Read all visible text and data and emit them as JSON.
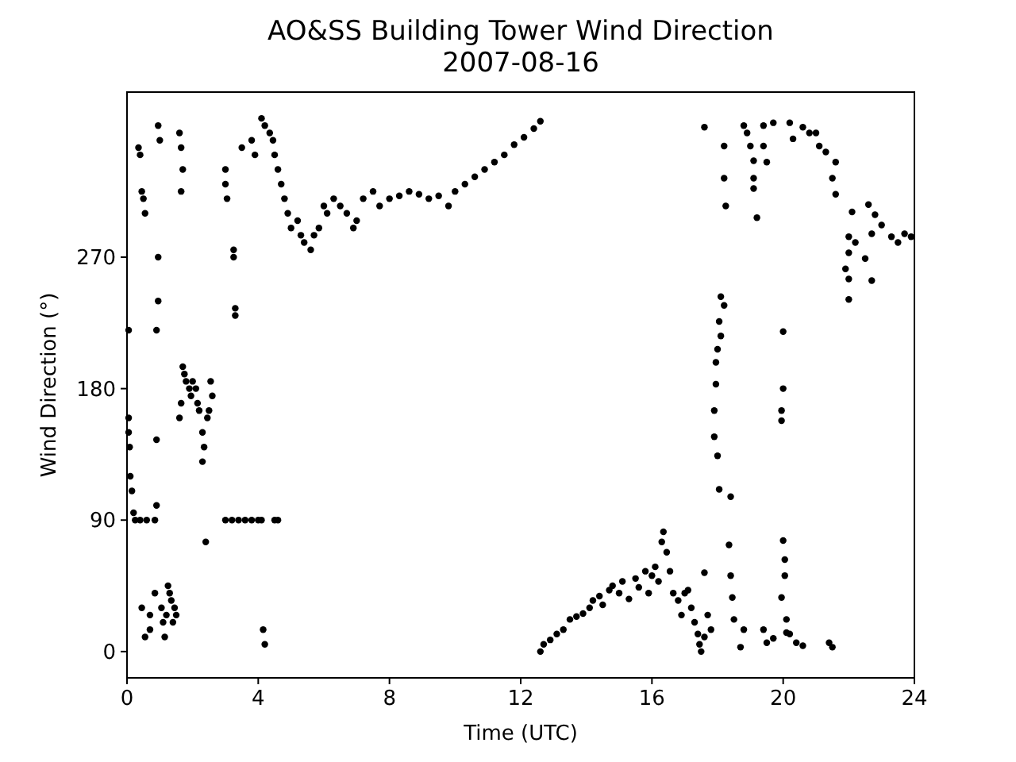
{
  "chart_data": {
    "type": "scatter",
    "title": "AO&SS Building Tower Wind Direction",
    "subtitle": "2007-08-16",
    "xlabel": "Time (UTC)",
    "ylabel": "Wind Direction (°)",
    "xlim": [
      0,
      24
    ],
    "xticks": [
      0,
      4,
      8,
      12,
      16,
      20,
      24
    ],
    "ylim": [
      -18,
      383
    ],
    "yticks": [
      0,
      90,
      180,
      270
    ],
    "marker": "circle",
    "series": [
      {
        "color": "#000000",
        "x": [
          0.05,
          0.05,
          0.05,
          0.08,
          0.1,
          0.15,
          0.2,
          0.25,
          0.35,
          0.4,
          0.45,
          0.5,
          0.55,
          0.4,
          0.6,
          0.45,
          0.55,
          0.7,
          0.7,
          0.85,
          0.9,
          0.85,
          0.95,
          1.0,
          0.95,
          0.95,
          0.9,
          0.9,
          1.05,
          1.1,
          1.15,
          1.2,
          1.3,
          1.35,
          1.4,
          1.45,
          1.5,
          1.25,
          1.6,
          1.65,
          1.7,
          1.65,
          1.7,
          1.75,
          1.8,
          1.9,
          1.95,
          2.0,
          1.6,
          1.65,
          2.1,
          2.15,
          2.2,
          2.3,
          2.35,
          2.3,
          2.4,
          2.55,
          2.6,
          2.5,
          2.45,
          3.0,
          3.0,
          3.05,
          3.25,
          3.25,
          3.3,
          3.3,
          3.0,
          3.2,
          3.4,
          3.6,
          3.8,
          4.0,
          4.1,
          4.5,
          4.6,
          3.5,
          3.8,
          3.9,
          4.1,
          4.2,
          4.35,
          4.45,
          4.15,
          4.2,
          4.5,
          4.6,
          4.7,
          4.8,
          4.9,
          5.0,
          5.2,
          5.3,
          5.4,
          5.6,
          5.7,
          5.85,
          6.0,
          6.1,
          6.3,
          6.5,
          6.7,
          6.9,
          7.0,
          7.2,
          7.5,
          7.7,
          8.0,
          8.3,
          8.6,
          8.9,
          9.2,
          9.5,
          9.8,
          10.0,
          10.3,
          10.6,
          10.9,
          11.2,
          11.5,
          11.8,
          12.1,
          12.4,
          12.6,
          12.6,
          12.7,
          12.9,
          13.1,
          13.3,
          13.5,
          13.7,
          13.9,
          14.1,
          14.2,
          14.4,
          14.5,
          14.7,
          14.8,
          15.0,
          15.1,
          15.3,
          15.5,
          15.6,
          15.8,
          15.9,
          16.0,
          16.1,
          16.2,
          16.3,
          16.35,
          16.45,
          16.55,
          16.65,
          16.8,
          16.9,
          17.0,
          17.1,
          17.2,
          17.3,
          17.4,
          17.45,
          17.5,
          17.6,
          17.6,
          17.7,
          17.8,
          17.6,
          18.2,
          18.2,
          18.25,
          18.1,
          18.2,
          18.05,
          18.1,
          18.0,
          17.95,
          17.95,
          17.9,
          17.9,
          18.0,
          18.05,
          18.4,
          18.35,
          18.4,
          18.45,
          18.5,
          18.8,
          18.7,
          18.8,
          18.9,
          19.0,
          19.1,
          19.1,
          19.1,
          19.2,
          19.4,
          19.4,
          19.5,
          19.7,
          20.2,
          20.3,
          20.6,
          20.8,
          21.0,
          21.1,
          21.3,
          21.6,
          21.5,
          21.6,
          22.1,
          22.0,
          22.0,
          22.2,
          22.5,
          22.7,
          22.8,
          23.0,
          23.3,
          23.5,
          23.7,
          23.9,
          21.9,
          22.0,
          22.0,
          22.7,
          22.6,
          20.0,
          20.0,
          19.95,
          19.95,
          20.0,
          20.05,
          20.05,
          19.95,
          20.1,
          20.1,
          19.4,
          19.5,
          19.7,
          20.2,
          20.4,
          20.6,
          21.4,
          21.5
        ],
        "values": [
          220,
          160,
          150,
          140,
          120,
          110,
          95,
          90,
          345,
          340,
          315,
          310,
          300,
          90,
          90,
          30,
          10,
          15,
          25,
          90,
          100,
          40,
          360,
          350,
          270,
          240,
          220,
          145,
          30,
          20,
          10,
          25,
          40,
          35,
          20,
          30,
          25,
          45,
          355,
          345,
          330,
          315,
          195,
          190,
          185,
          180,
          175,
          185,
          160,
          170,
          180,
          170,
          165,
          150,
          140,
          130,
          75,
          185,
          175,
          165,
          160,
          330,
          320,
          310,
          275,
          270,
          235,
          230,
          90,
          90,
          90,
          90,
          90,
          90,
          90,
          90,
          90,
          345,
          350,
          340,
          365,
          360,
          355,
          350,
          15,
          5,
          340,
          330,
          320,
          310,
          300,
          290,
          295,
          285,
          280,
          275,
          285,
          290,
          305,
          300,
          310,
          305,
          300,
          290,
          295,
          310,
          315,
          305,
          310,
          312,
          315,
          313,
          310,
          312,
          305,
          315,
          320,
          325,
          330,
          335,
          340,
          347,
          352,
          358,
          363,
          0,
          5,
          8,
          12,
          15,
          22,
          24,
          26,
          30,
          35,
          38,
          32,
          42,
          45,
          40,
          48,
          36,
          50,
          44,
          55,
          40,
          52,
          58,
          48,
          75,
          82,
          68,
          55,
          40,
          35,
          25,
          40,
          42,
          30,
          20,
          12,
          5,
          0,
          54,
          10,
          25,
          15,
          359,
          346,
          324,
          305,
          243,
          237,
          226,
          216,
          207,
          198,
          183,
          165,
          147,
          134,
          111,
          106,
          73,
          52,
          37,
          22,
          15,
          3,
          360,
          355,
          346,
          336,
          324,
          317,
          297,
          360,
          346,
          335,
          362,
          362,
          351,
          359,
          355,
          355,
          346,
          342,
          335,
          324,
          313,
          301,
          284,
          273,
          280,
          269,
          286,
          299,
          292,
          284,
          280,
          286,
          284,
          262,
          255,
          241,
          254,
          306,
          219,
          180,
          165,
          158,
          76,
          63,
          52,
          37,
          22,
          13,
          15,
          6,
          9,
          12,
          6,
          4,
          6,
          3
        ]
      }
    ]
  }
}
